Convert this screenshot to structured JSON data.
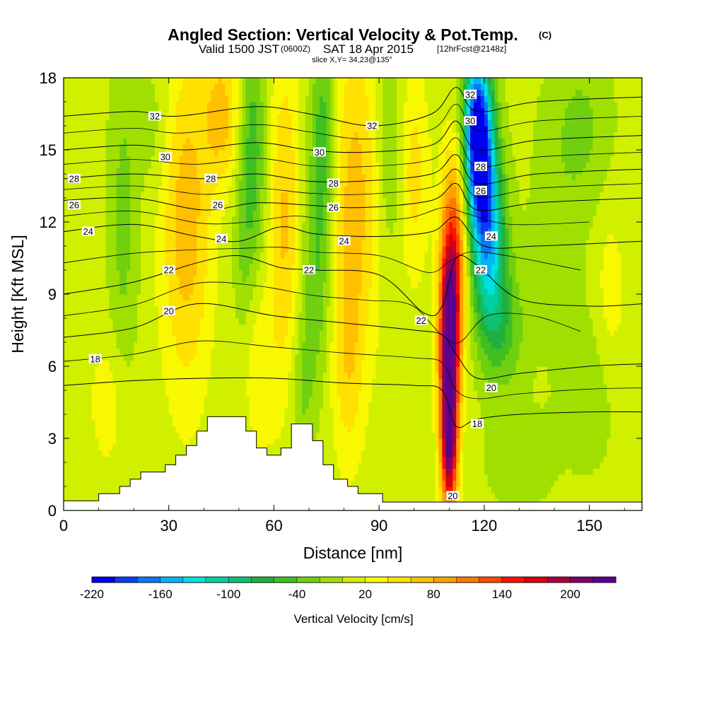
{
  "title": {
    "main": "Angled Section: Vertical Velocity & Pot.Temp.",
    "main_unit": "(C)",
    "valid_prefix": "Valid 1500 JST",
    "valid_z": "(0600Z)",
    "valid_date": "SAT 18 Apr 2015",
    "valid_fcst": "[12hrFcst@2148z]",
    "slice": "slice X,Y= 34,23@135°"
  },
  "chart_data": {
    "type": "heatmap",
    "title": "Angled Section: Vertical Velocity & Pot.Temp.",
    "xlabel": "Distance [nm]",
    "ylabel": "Height [Kft MSL]",
    "xlim": [
      0,
      165
    ],
    "ylim": [
      0,
      18
    ],
    "xticks": [
      0,
      30,
      60,
      90,
      120,
      150
    ],
    "yticks": [
      0,
      3,
      6,
      9,
      12,
      15,
      18
    ],
    "colorbar": {
      "label": "Vertical Velocity [cm/s]",
      "tick_labels": [
        "-220",
        "-160",
        "-100",
        "-40",
        "20",
        "80",
        "140",
        "200"
      ],
      "tick_values": [
        -220,
        -160,
        -100,
        -40,
        20,
        80,
        140,
        200
      ],
      "levels": [
        -220,
        -200,
        -180,
        -160,
        -140,
        -120,
        -100,
        -80,
        -60,
        -40,
        -20,
        0,
        20,
        40,
        60,
        80,
        100,
        120,
        140,
        160,
        180,
        200,
        220
      ],
      "colors": [
        "#0000f0",
        "#0a3cf5",
        "#0a78f5",
        "#00b4f5",
        "#00e0e0",
        "#00d0a0",
        "#10c070",
        "#20b040",
        "#40c020",
        "#70d010",
        "#a0e000",
        "#d0f000",
        "#f8f800",
        "#ffe000",
        "#ffc000",
        "#ffa000",
        "#ff7800",
        "#ff4800",
        "#ff1000",
        "#d80010",
        "#a80040",
        "#800070",
        "#5a0090"
      ]
    },
    "terrain": [
      [
        0,
        0.4
      ],
      [
        10,
        0.4
      ],
      [
        10,
        0.7
      ],
      [
        16,
        0.7
      ],
      [
        16,
        1.0
      ],
      [
        19,
        1.0
      ],
      [
        19,
        1.3
      ],
      [
        22,
        1.3
      ],
      [
        22,
        1.6
      ],
      [
        29,
        1.6
      ],
      [
        29,
        1.9
      ],
      [
        32,
        1.9
      ],
      [
        32,
        2.3
      ],
      [
        35,
        2.3
      ],
      [
        35,
        2.7
      ],
      [
        38,
        2.7
      ],
      [
        38,
        3.3
      ],
      [
        41,
        3.3
      ],
      [
        41,
        3.9
      ],
      [
        52,
        3.9
      ],
      [
        52,
        3.3
      ],
      [
        55,
        3.3
      ],
      [
        55,
        2.6
      ],
      [
        58,
        2.6
      ],
      [
        58,
        2.3
      ],
      [
        62,
        2.3
      ],
      [
        62,
        2.6
      ],
      [
        65,
        2.6
      ],
      [
        65,
        3.6
      ],
      [
        71,
        3.6
      ],
      [
        71,
        2.9
      ],
      [
        74,
        2.9
      ],
      [
        74,
        1.9
      ],
      [
        77,
        1.9
      ],
      [
        77,
        1.3
      ],
      [
        81,
        1.3
      ],
      [
        81,
        1.0
      ],
      [
        84,
        1.0
      ],
      [
        84,
        0.7
      ],
      [
        91,
        0.7
      ],
      [
        91,
        0.35
      ],
      [
        165,
        0.35
      ]
    ],
    "velocity_features": [
      {
        "x": 110,
        "y": 7.0,
        "sx": 2.0,
        "sy": 3.2,
        "value": 230
      },
      {
        "x": 110,
        "y": 2.5,
        "sx": 1.6,
        "sy": 2.0,
        "value": 150
      },
      {
        "x": 112,
        "y": 11.0,
        "sx": 2.5,
        "sy": 3.0,
        "value": 90
      },
      {
        "x": 118,
        "y": 16.0,
        "sx": 2.8,
        "sy": 2.3,
        "value": -205
      },
      {
        "x": 120,
        "y": 13.0,
        "sx": 3.2,
        "sy": 2.5,
        "value": -130
      },
      {
        "x": 122,
        "y": 10.0,
        "sx": 3.6,
        "sy": 2.5,
        "value": -85
      },
      {
        "x": 126,
        "y": 7.5,
        "sx": 4.5,
        "sy": 1.8,
        "value": -40
      },
      {
        "x": 35,
        "y": 12.0,
        "sx": 5.0,
        "sy": 5.0,
        "value": 65
      },
      {
        "x": 45,
        "y": 16.5,
        "sx": 3.5,
        "sy": 2.0,
        "value": 60
      },
      {
        "x": 63,
        "y": 12.0,
        "sx": 3.0,
        "sy": 5.0,
        "value": 55
      },
      {
        "x": 83,
        "y": 13.0,
        "sx": 5.0,
        "sy": 5.0,
        "value": 60
      },
      {
        "x": 100,
        "y": 14.0,
        "sx": 3.0,
        "sy": 3.0,
        "value": 40
      },
      {
        "x": 56,
        "y": 6.0,
        "sx": 3.0,
        "sy": 2.5,
        "value": 30
      },
      {
        "x": 81,
        "y": 6.0,
        "sx": 3.0,
        "sy": 3.0,
        "value": 35
      },
      {
        "x": 17,
        "y": 12.0,
        "sx": 3.0,
        "sy": 5.0,
        "value": -35
      },
      {
        "x": 26,
        "y": 16.0,
        "sx": 3.5,
        "sy": 2.0,
        "value": -20
      },
      {
        "x": 54,
        "y": 15.0,
        "sx": 2.5,
        "sy": 3.5,
        "value": -60
      },
      {
        "x": 51,
        "y": 11.0,
        "sx": 2.0,
        "sy": 2.5,
        "value": -25
      },
      {
        "x": 74,
        "y": 15.5,
        "sx": 2.5,
        "sy": 3.0,
        "value": -65
      },
      {
        "x": 72,
        "y": 9.5,
        "sx": 3.0,
        "sy": 3.0,
        "value": -45
      },
      {
        "x": 68,
        "y": 5.0,
        "sx": 2.5,
        "sy": 2.0,
        "value": -30
      },
      {
        "x": 93,
        "y": 15.0,
        "sx": 2.5,
        "sy": 3.0,
        "value": -35
      },
      {
        "x": 148,
        "y": 16.0,
        "sx": 6.0,
        "sy": 2.5,
        "value": -30
      },
      {
        "x": 150,
        "y": 5.0,
        "sx": 6.0,
        "sy": 2.5,
        "value": -20
      },
      {
        "x": 130,
        "y": 2.0,
        "sx": 7.0,
        "sy": 1.5,
        "value": -20
      },
      {
        "x": 140,
        "y": 12.0,
        "sx": 6.0,
        "sy": 4.0,
        "value": -15
      },
      {
        "x": 156,
        "y": 9.0,
        "sx": 3.0,
        "sy": 2.5,
        "value": 25
      },
      {
        "x": 13,
        "y": 4.5,
        "sx": 4.0,
        "sy": 2.0,
        "value": 25
      }
    ],
    "isentropes": [
      {
        "value": 18,
        "points": [
          [
            0,
            5.2
          ],
          [
            20,
            5.4
          ],
          [
            40,
            5.5
          ],
          [
            60,
            5.5
          ],
          [
            80,
            5.3
          ],
          [
            100,
            5.2
          ],
          [
            108,
            5.0
          ],
          [
            112,
            3.5
          ],
          [
            118,
            3.8
          ],
          [
            130,
            4.0
          ],
          [
            150,
            4.1
          ],
          [
            165,
            4.1
          ]
        ]
      },
      {
        "value": 20,
        "points": [
          [
            0,
            7.2
          ],
          [
            20,
            7.6
          ],
          [
            38,
            8.6
          ],
          [
            60,
            8.1
          ],
          [
            80,
            7.8
          ],
          [
            100,
            7.5
          ],
          [
            108,
            7.3
          ],
          [
            112,
            6.5
          ],
          [
            118,
            5.5
          ],
          [
            130,
            5.7
          ],
          [
            150,
            6.0
          ],
          [
            165,
            6.1
          ]
        ]
      },
      {
        "value": 22,
        "points": [
          [
            0,
            9.0
          ],
          [
            20,
            9.5
          ],
          [
            38,
            10.3
          ],
          [
            50,
            10.6
          ],
          [
            62,
            10.1
          ],
          [
            72,
            10.0
          ],
          [
            90,
            9.8
          ],
          [
            103,
            8.2
          ],
          [
            108,
            8.5
          ],
          [
            112,
            10.5
          ],
          [
            118,
            10.2
          ],
          [
            130,
            8.8
          ],
          [
            150,
            8.5
          ],
          [
            165,
            8.6
          ]
        ]
      },
      {
        "value": 24,
        "points": [
          [
            0,
            11.6
          ],
          [
            20,
            11.9
          ],
          [
            38,
            11.4
          ],
          [
            50,
            11.2
          ],
          [
            62,
            11.8
          ],
          [
            72,
            11.5
          ],
          [
            90,
            11.4
          ],
          [
            105,
            11.6
          ],
          [
            112,
            12.2
          ],
          [
            120,
            11.0
          ],
          [
            135,
            11.0
          ],
          [
            165,
            11.2
          ]
        ]
      },
      {
        "value": 26,
        "points": [
          [
            0,
            12.9
          ],
          [
            20,
            13.0
          ],
          [
            40,
            12.5
          ],
          [
            55,
            12.8
          ],
          [
            70,
            12.7
          ],
          [
            85,
            12.6
          ],
          [
            105,
            12.9
          ],
          [
            112,
            13.6
          ],
          [
            118,
            12.5
          ],
          [
            135,
            12.8
          ],
          [
            165,
            13.0
          ]
        ]
      },
      {
        "value": 28,
        "points": [
          [
            0,
            13.8
          ],
          [
            20,
            14.0
          ],
          [
            40,
            13.8
          ],
          [
            55,
            14.0
          ],
          [
            70,
            13.7
          ],
          [
            85,
            13.7
          ],
          [
            105,
            14.0
          ],
          [
            112,
            14.8
          ],
          [
            118,
            13.6
          ],
          [
            135,
            14.0
          ],
          [
            165,
            14.2
          ]
        ]
      },
      {
        "value": 30,
        "points": [
          [
            0,
            15.0
          ],
          [
            20,
            15.2
          ],
          [
            35,
            15.0
          ],
          [
            55,
            15.3
          ],
          [
            70,
            15.0
          ],
          [
            85,
            14.9
          ],
          [
            105,
            15.2
          ],
          [
            112,
            16.2
          ],
          [
            118,
            15.0
          ],
          [
            135,
            15.4
          ],
          [
            165,
            15.6
          ]
        ]
      },
      {
        "value": 32,
        "points": [
          [
            0,
            16.4
          ],
          [
            20,
            16.6
          ],
          [
            32,
            16.4
          ],
          [
            55,
            16.8
          ],
          [
            70,
            16.5
          ],
          [
            88,
            16.0
          ],
          [
            105,
            16.5
          ],
          [
            112,
            17.6
          ],
          [
            118,
            16.6
          ],
          [
            135,
            17.0
          ],
          [
            165,
            17.2
          ]
        ]
      }
    ],
    "contour_labels": [
      {
        "text": "32",
        "x": 26,
        "y": 16.4
      },
      {
        "text": "30",
        "x": 29,
        "y": 14.7
      },
      {
        "text": "28",
        "x": 3,
        "y": 13.8
      },
      {
        "text": "26",
        "x": 3,
        "y": 12.7
      },
      {
        "text": "24",
        "x": 7,
        "y": 11.6
      },
      {
        "text": "22",
        "x": 30,
        "y": 10.0
      },
      {
        "text": "20",
        "x": 30,
        "y": 8.3
      },
      {
        "text": "18",
        "x": 9,
        "y": 6.3
      },
      {
        "text": "28",
        "x": 42,
        "y": 13.8
      },
      {
        "text": "26",
        "x": 44,
        "y": 12.7
      },
      {
        "text": "24",
        "x": 45,
        "y": 11.3
      },
      {
        "text": "30",
        "x": 73,
        "y": 14.9
      },
      {
        "text": "28",
        "x": 77,
        "y": 13.6
      },
      {
        "text": "26",
        "x": 77,
        "y": 12.6
      },
      {
        "text": "24",
        "x": 80,
        "y": 11.2
      },
      {
        "text": "22",
        "x": 70,
        "y": 10.0
      },
      {
        "text": "32",
        "x": 88,
        "y": 16.0
      },
      {
        "text": "22",
        "x": 102,
        "y": 7.9
      },
      {
        "text": "32",
        "x": 116,
        "y": 17.3
      },
      {
        "text": "30",
        "x": 116,
        "y": 16.2
      },
      {
        "text": "28",
        "x": 119,
        "y": 14.3
      },
      {
        "text": "26",
        "x": 119,
        "y": 13.3
      },
      {
        "text": "24",
        "x": 122,
        "y": 11.4
      },
      {
        "text": "22",
        "x": 119,
        "y": 10.0
      },
      {
        "text": "20",
        "x": 122,
        "y": 5.1
      },
      {
        "text": "18",
        "x": 118,
        "y": 3.6
      },
      {
        "text": "20",
        "x": 111,
        "y": 0.6
      }
    ]
  }
}
